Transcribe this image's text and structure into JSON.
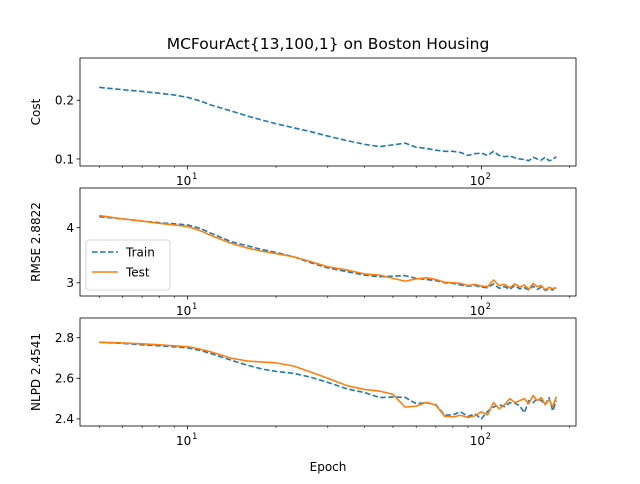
{
  "figure_title": "MCFourAct{13,100,1} on Boston Housing",
  "colors": {
    "train": "#1f77b4",
    "test": "#ff7f0e"
  },
  "chart_data": [
    {
      "type": "line",
      "xscale": "log",
      "xlim": [
        4.3,
        210
      ],
      "ylim": [
        0.088,
        0.272
      ],
      "ylabel": "Cost",
      "xlabel": "",
      "major_x_ticks": [
        {
          "value": 10,
          "base": "10",
          "exp": "1"
        },
        {
          "value": 100,
          "base": "10",
          "exp": "2"
        }
      ],
      "yticks": [
        {
          "value": 0.1,
          "label": "0.1"
        },
        {
          "value": 0.2,
          "label": "0.2"
        }
      ],
      "legend": false,
      "series": [
        {
          "key": "train",
          "style": "dashed",
          "x": [
            5,
            6,
            7,
            8,
            9,
            10,
            11,
            12,
            14,
            16,
            18,
            20,
            23,
            26,
            30,
            35,
            40,
            45,
            50,
            55,
            60,
            65,
            70,
            75,
            80,
            85,
            90,
            95,
            100,
            105,
            110,
            115,
            120,
            125,
            130,
            135,
            140,
            145,
            150,
            155,
            160,
            165,
            170,
            175,
            180
          ],
          "y": [
            0.222,
            0.218,
            0.215,
            0.212,
            0.209,
            0.205,
            0.199,
            0.192,
            0.182,
            0.173,
            0.166,
            0.16,
            0.153,
            0.147,
            0.139,
            0.131,
            0.125,
            0.121,
            0.124,
            0.127,
            0.12,
            0.118,
            0.115,
            0.113,
            0.113,
            0.111,
            0.106,
            0.109,
            0.11,
            0.106,
            0.113,
            0.106,
            0.104,
            0.105,
            0.102,
            0.1,
            0.099,
            0.097,
            0.103,
            0.1,
            0.098,
            0.103,
            0.097,
            0.099,
            0.104
          ]
        }
      ]
    },
    {
      "type": "line",
      "xscale": "log",
      "xlim": [
        4.3,
        210
      ],
      "ylim": [
        2.76,
        4.72
      ],
      "ylabel": "RMSE 2.8822",
      "xlabel": "",
      "major_x_ticks": [
        {
          "value": 10,
          "base": "10",
          "exp": "1"
        },
        {
          "value": 100,
          "base": "10",
          "exp": "2"
        }
      ],
      "yticks": [
        {
          "value": 3,
          "label": "3"
        },
        {
          "value": 4,
          "label": "4"
        }
      ],
      "legend": true,
      "legend_position": "lower-left",
      "series": [
        {
          "key": "train",
          "name": "Train",
          "style": "dashed",
          "x": [
            5,
            6,
            7,
            8,
            9,
            10,
            11,
            12,
            14,
            16,
            18,
            20,
            23,
            26,
            30,
            35,
            40,
            45,
            50,
            55,
            60,
            65,
            70,
            75,
            80,
            85,
            90,
            95,
            100,
            105,
            110,
            115,
            120,
            125,
            130,
            135,
            140,
            145,
            150,
            155,
            160,
            165,
            170,
            175,
            180
          ],
          "y": [
            4.2,
            4.16,
            4.12,
            4.09,
            4.07,
            4.05,
            3.99,
            3.9,
            3.75,
            3.67,
            3.6,
            3.55,
            3.47,
            3.37,
            3.27,
            3.2,
            3.14,
            3.11,
            3.12,
            3.13,
            3.08,
            3.06,
            3.04,
            3.0,
            2.99,
            2.96,
            2.94,
            2.95,
            2.92,
            2.91,
            2.98,
            2.9,
            2.93,
            2.88,
            2.95,
            2.89,
            2.91,
            2.87,
            2.94,
            2.88,
            2.92,
            2.86,
            2.89,
            2.87,
            2.95
          ]
        },
        {
          "key": "test",
          "name": "Test",
          "style": "solid",
          "x": [
            5,
            6,
            7,
            8,
            9,
            10,
            11,
            12,
            14,
            16,
            18,
            20,
            23,
            26,
            30,
            35,
            40,
            45,
            50,
            55,
            60,
            65,
            70,
            75,
            80,
            85,
            90,
            95,
            100,
            105,
            110,
            115,
            120,
            125,
            130,
            135,
            140,
            145,
            150,
            155,
            160,
            165,
            170,
            175,
            180
          ],
          "y": [
            4.22,
            4.16,
            4.12,
            4.08,
            4.05,
            4.02,
            3.95,
            3.86,
            3.72,
            3.63,
            3.57,
            3.53,
            3.47,
            3.39,
            3.29,
            3.23,
            3.16,
            3.14,
            3.08,
            3.03,
            3.07,
            3.09,
            3.06,
            3.01,
            3.0,
            2.99,
            2.95,
            2.97,
            2.94,
            2.93,
            3.05,
            2.95,
            2.97,
            2.91,
            2.98,
            2.92,
            2.96,
            2.88,
            2.99,
            2.93,
            2.95,
            2.87,
            2.92,
            2.89,
            2.91
          ]
        }
      ]
    },
    {
      "type": "line",
      "xscale": "log",
      "xlim": [
        4.3,
        210
      ],
      "ylim": [
        2.365,
        2.897
      ],
      "ylabel": "NLPD 2.4541",
      "xlabel": "Epoch",
      "major_x_ticks": [
        {
          "value": 10,
          "base": "10",
          "exp": "1"
        },
        {
          "value": 100,
          "base": "10",
          "exp": "2"
        }
      ],
      "yticks": [
        {
          "value": 2.4,
          "label": "2.4"
        },
        {
          "value": 2.6,
          "label": "2.6"
        },
        {
          "value": 2.8,
          "label": "2.8"
        }
      ],
      "legend": false,
      "series": [
        {
          "key": "train",
          "style": "dashed",
          "x": [
            5,
            6,
            7,
            8,
            9,
            10,
            11,
            12,
            14,
            16,
            18,
            20,
            23,
            26,
            30,
            35,
            40,
            45,
            50,
            55,
            60,
            65,
            70,
            75,
            80,
            85,
            90,
            95,
            100,
            105,
            110,
            115,
            120,
            125,
            130,
            135,
            140,
            145,
            150,
            155,
            160,
            165,
            170,
            175,
            180
          ],
          "y": [
            2.777,
            2.772,
            2.765,
            2.76,
            2.755,
            2.75,
            2.738,
            2.722,
            2.69,
            2.664,
            2.645,
            2.634,
            2.624,
            2.607,
            2.58,
            2.547,
            2.53,
            2.505,
            2.508,
            2.506,
            2.475,
            2.48,
            2.47,
            2.418,
            2.42,
            2.435,
            2.412,
            2.425,
            2.4,
            2.437,
            2.458,
            2.47,
            2.46,
            2.48,
            2.478,
            2.465,
            2.43,
            2.49,
            2.48,
            2.5,
            2.49,
            2.47,
            2.505,
            2.44,
            2.49
          ]
        },
        {
          "key": "test",
          "style": "solid",
          "x": [
            5,
            6,
            7,
            8,
            9,
            10,
            11,
            12,
            14,
            16,
            18,
            20,
            23,
            26,
            30,
            35,
            40,
            45,
            50,
            55,
            60,
            65,
            70,
            75,
            80,
            85,
            90,
            95,
            100,
            105,
            110,
            115,
            120,
            125,
            130,
            135,
            140,
            145,
            150,
            155,
            160,
            165,
            170,
            175,
            180
          ],
          "y": [
            2.778,
            2.774,
            2.77,
            2.765,
            2.76,
            2.756,
            2.744,
            2.73,
            2.7,
            2.685,
            2.68,
            2.676,
            2.66,
            2.633,
            2.6,
            2.563,
            2.545,
            2.537,
            2.521,
            2.458,
            2.463,
            2.482,
            2.468,
            2.413,
            2.41,
            2.418,
            2.407,
            2.415,
            2.435,
            2.42,
            2.48,
            2.45,
            2.47,
            2.5,
            2.48,
            2.49,
            2.5,
            2.475,
            2.515,
            2.49,
            2.505,
            2.47,
            2.495,
            2.46,
            2.51
          ]
        }
      ]
    }
  ]
}
